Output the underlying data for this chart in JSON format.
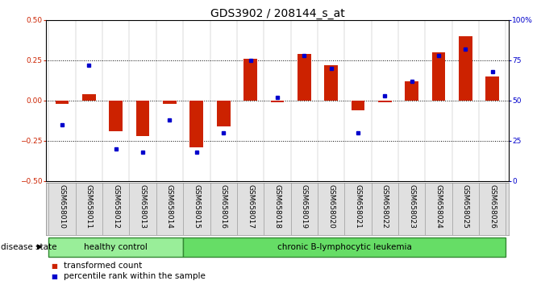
{
  "title": "GDS3902 / 208144_s_at",
  "samples": [
    "GSM658010",
    "GSM658011",
    "GSM658012",
    "GSM658013",
    "GSM658014",
    "GSM658015",
    "GSM658016",
    "GSM658017",
    "GSM658018",
    "GSM658019",
    "GSM658020",
    "GSM658021",
    "GSM658022",
    "GSM658023",
    "GSM658024",
    "GSM658025",
    "GSM658026"
  ],
  "red_bars": [
    -0.02,
    0.04,
    -0.19,
    -0.22,
    -0.02,
    -0.29,
    -0.16,
    0.26,
    -0.01,
    0.29,
    0.22,
    -0.06,
    -0.01,
    0.12,
    0.3,
    0.4,
    0.15
  ],
  "blue_squares": [
    35,
    72,
    20,
    18,
    38,
    18,
    30,
    75,
    52,
    78,
    70,
    30,
    53,
    62,
    78,
    82,
    68
  ],
  "ylim_left": [
    -0.5,
    0.5
  ],
  "ylim_right": [
    0,
    100
  ],
  "yticks_left": [
    -0.5,
    -0.25,
    0.0,
    0.25,
    0.5
  ],
  "yticks_right": [
    0,
    25,
    50,
    75,
    100
  ],
  "ytick_labels_right": [
    "0",
    "25",
    "50",
    "75",
    "100%"
  ],
  "hlines": [
    0.25,
    0.0,
    -0.25
  ],
  "bar_color": "#cc2200",
  "square_color": "#0000cc",
  "n_healthy": 5,
  "healthy_label": "healthy control",
  "leukemia_label": "chronic B-lymphocytic leukemia",
  "disease_state_label": "disease state",
  "legend_red": "transformed count",
  "legend_blue": "percentile rank within the sample",
  "healthy_color": "#99ee99",
  "leukemia_color": "#66dd66",
  "group_border_color": "#338833",
  "bar_width": 0.5,
  "title_fontsize": 10,
  "tick_fontsize": 6.5,
  "label_fontsize": 7.5,
  "xlim": [
    -0.6,
    16.6
  ]
}
